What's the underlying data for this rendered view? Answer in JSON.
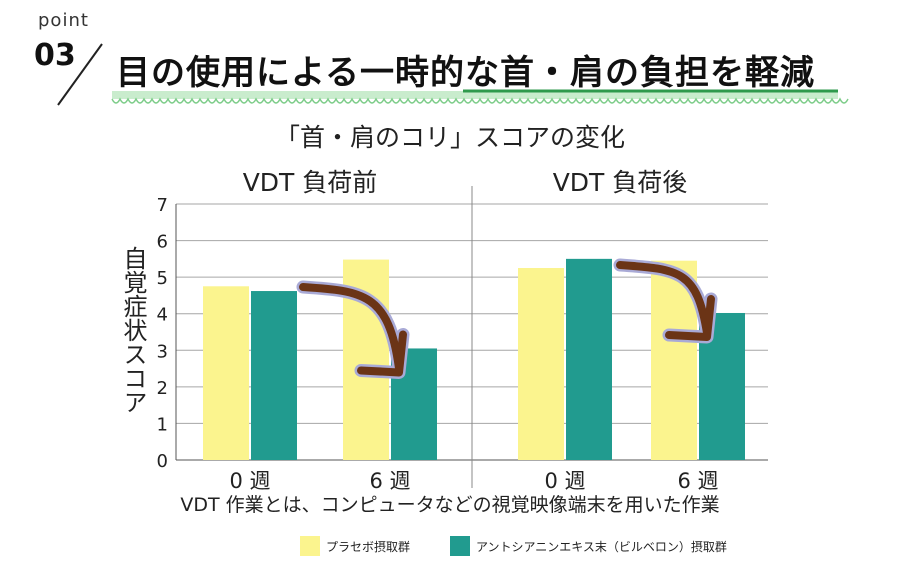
{
  "header": {
    "point_label": "point",
    "point_number": "03",
    "headline": "目の使用による一時的な首・肩の負担を軽減"
  },
  "note": "VDT 作業とは、コンピュータなどの視覚映像端末を用いた作業",
  "colors": {
    "placebo": "#fbf48e",
    "bilberry": "#219b8f",
    "arrow": "#6b3416",
    "arrow_glow": "#a9aad6",
    "wave": "#c9eccd",
    "grid": "#a6a6a6"
  },
  "chart_data": {
    "type": "bar",
    "title": "「首・肩のコリ」スコアの変化",
    "ylabel": "自覚症状スコア",
    "ylim": [
      0,
      7
    ],
    "yticks": [
      "0",
      "1",
      "2",
      "3",
      "4",
      "5",
      "6",
      "7"
    ],
    "grid": true,
    "legend_position": "bottom",
    "series_names": [
      "プラセボ摂取群",
      "アントシアニンエキス末（ビルベロン）摂取群"
    ],
    "panels": [
      {
        "title": "VDT 負荷前",
        "categories": [
          "0 週",
          "6 週"
        ],
        "series": [
          {
            "name": "プラセボ摂取群",
            "values": [
              4.75,
              5.48
            ]
          },
          {
            "name": "アントシアニンエキス末（ビルベロン）摂取群",
            "values": [
              4.62,
              3.05
            ]
          }
        ]
      },
      {
        "title": "VDT 負荷後",
        "categories": [
          "0 週",
          "6 週"
        ],
        "series": [
          {
            "name": "プラセボ摂取群",
            "values": [
              5.25,
              5.45
            ]
          },
          {
            "name": "アントシアニンエキス末（ビルベロン）摂取群",
            "values": [
              5.5,
              4.02
            ]
          }
        ]
      }
    ]
  }
}
